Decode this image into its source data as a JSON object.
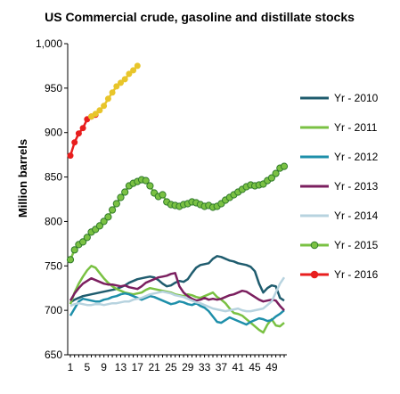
{
  "chart_data": {
    "type": "line",
    "title": "US Commercial crude, gasoline and distillate stocks",
    "ylabel": "Million barrels",
    "xlabel": "",
    "ylim": [
      650,
      1000
    ],
    "xlim": [
      1,
      52
    ],
    "yticks": [
      650,
      700,
      750,
      800,
      850,
      900,
      950,
      1000
    ],
    "ytick_labels": [
      "650",
      "700",
      "750",
      "800",
      "850",
      "900",
      "950",
      "1,000"
    ],
    "xticks": [
      1,
      5,
      9,
      13,
      17,
      21,
      25,
      29,
      33,
      37,
      41,
      45,
      49
    ],
    "grid": false,
    "legend_position": "right",
    "series": [
      {
        "name": "Yr - 2010",
        "color": "#1F5C6E",
        "marker": "none",
        "x": [
          1,
          2,
          3,
          4,
          5,
          6,
          7,
          8,
          9,
          10,
          11,
          12,
          13,
          14,
          15,
          16,
          17,
          18,
          19,
          20,
          21,
          22,
          23,
          24,
          25,
          26,
          27,
          28,
          29,
          30,
          31,
          32,
          33,
          34,
          35,
          36,
          37,
          38,
          39,
          40,
          41,
          42,
          43,
          44,
          45,
          46,
          47,
          48,
          49,
          50,
          51,
          52
        ],
        "values": [
          709,
          712,
          714,
          716,
          717,
          718,
          719,
          720,
          721,
          722,
          723,
          724,
          726,
          728,
          731,
          733,
          735,
          736,
          737,
          738,
          737,
          734,
          730,
          727,
          728,
          731,
          733,
          732,
          735,
          742,
          748,
          751,
          752,
          753,
          758,
          761,
          760,
          758,
          756,
          755,
          753,
          752,
          751,
          749,
          744,
          730,
          720,
          725,
          728,
          727,
          714,
          711
        ]
      },
      {
        "name": "Yr - 2011",
        "color": "#7AC143",
        "marker": "none",
        "x": [
          1,
          2,
          3,
          4,
          5,
          6,
          7,
          8,
          9,
          10,
          11,
          12,
          13,
          14,
          15,
          16,
          17,
          18,
          19,
          20,
          21,
          22,
          23,
          24,
          25,
          26,
          27,
          28,
          29,
          30,
          31,
          32,
          33,
          34,
          35,
          36,
          37,
          38,
          39,
          40,
          41,
          42,
          43,
          44,
          45,
          46,
          47,
          48,
          49,
          50,
          51,
          52
        ],
        "values": [
          707,
          720,
          730,
          738,
          745,
          750,
          748,
          742,
          736,
          731,
          727,
          724,
          722,
          720,
          719,
          718,
          719,
          720,
          723,
          725,
          724,
          723,
          722,
          721,
          720,
          718,
          717,
          716,
          718,
          717,
          715,
          714,
          716,
          718,
          720,
          715,
          712,
          708,
          702,
          697,
          696,
          694,
          690,
          686,
          682,
          678,
          675,
          684,
          690,
          683,
          682,
          686
        ]
      },
      {
        "name": "Yr - 2012",
        "color": "#1E8FAA",
        "marker": "none",
        "x": [
          1,
          2,
          3,
          4,
          5,
          6,
          7,
          8,
          9,
          10,
          11,
          12,
          13,
          14,
          15,
          16,
          17,
          18,
          19,
          20,
          21,
          22,
          23,
          24,
          25,
          26,
          27,
          28,
          29,
          30,
          31,
          32,
          33,
          34,
          35,
          36,
          37,
          38,
          39,
          40,
          41,
          42,
          43,
          44,
          45,
          46,
          47,
          48,
          49,
          50,
          51,
          52
        ],
        "values": [
          694,
          702,
          710,
          713,
          712,
          711,
          710,
          710,
          712,
          713,
          715,
          716,
          718,
          719,
          718,
          716,
          714,
          712,
          714,
          716,
          715,
          713,
          711,
          709,
          707,
          708,
          710,
          709,
          707,
          706,
          708,
          705,
          703,
          699,
          693,
          687,
          686,
          689,
          692,
          690,
          688,
          686,
          684,
          687,
          689,
          691,
          690,
          688,
          689,
          693,
          696,
          700
        ]
      },
      {
        "name": "Yr - 2013",
        "color": "#7B1F5F",
        "marker": "none",
        "x": [
          1,
          2,
          3,
          4,
          5,
          6,
          7,
          8,
          9,
          10,
          11,
          12,
          13,
          14,
          15,
          16,
          17,
          18,
          19,
          20,
          21,
          22,
          23,
          24,
          25,
          26,
          27,
          28,
          29,
          30,
          31,
          32,
          33,
          34,
          35,
          36,
          37,
          38,
          39,
          40,
          41,
          42,
          43,
          44,
          45,
          46,
          47,
          48,
          49,
          50,
          51,
          52
        ],
        "values": [
          711,
          719,
          725,
          730,
          733,
          736,
          734,
          732,
          730,
          729,
          729,
          728,
          727,
          728,
          726,
          725,
          724,
          727,
          731,
          733,
          735,
          737,
          738,
          739,
          741,
          742,
          727,
          720,
          716,
          713,
          711,
          712,
          714,
          712,
          713,
          712,
          713,
          715,
          717,
          718,
          720,
          722,
          721,
          718,
          715,
          712,
          710,
          711,
          712,
          711,
          705,
          700
        ]
      },
      {
        "name": "Yr - 2014",
        "color": "#B7D3DF",
        "marker": "none",
        "x": [
          1,
          2,
          3,
          4,
          5,
          6,
          7,
          8,
          9,
          10,
          11,
          12,
          13,
          14,
          15,
          16,
          17,
          18,
          19,
          20,
          21,
          22,
          23,
          24,
          25,
          26,
          27,
          28,
          29,
          30,
          31,
          32,
          33,
          34,
          35,
          36,
          37,
          38,
          39,
          40,
          41,
          42,
          43,
          44,
          45,
          46,
          47,
          48,
          49,
          50,
          51,
          52
        ],
        "values": [
          705,
          707,
          708,
          707,
          706,
          706,
          707,
          707,
          706,
          707,
          708,
          708,
          709,
          710,
          710,
          712,
          713,
          714,
          716,
          718,
          719,
          720,
          721,
          720,
          719,
          717,
          716,
          715,
          713,
          711,
          709,
          708,
          706,
          704,
          702,
          701,
          700,
          699,
          700,
          701,
          702,
          700,
          699,
          699,
          700,
          701,
          702,
          706,
          710,
          720,
          730,
          737
        ]
      },
      {
        "name": "Yr - 2015",
        "color": "#7AC143",
        "marker": "circle",
        "x": [
          1,
          2,
          3,
          4,
          5,
          6,
          7,
          8,
          9,
          10,
          11,
          12,
          13,
          14,
          15,
          16,
          17,
          18,
          19,
          20,
          21,
          22,
          23,
          24,
          25,
          26,
          27,
          28,
          29,
          30,
          31,
          32,
          33,
          34,
          35,
          36,
          37,
          38,
          39,
          40,
          41,
          42,
          43,
          44,
          45,
          46,
          47,
          48,
          49,
          50,
          51,
          52
        ],
        "values": [
          757,
          768,
          774,
          777,
          782,
          788,
          791,
          795,
          800,
          805,
          813,
          820,
          827,
          833,
          840,
          843,
          845,
          847,
          846,
          840,
          832,
          828,
          830,
          822,
          819,
          818,
          817,
          819,
          820,
          822,
          821,
          819,
          817,
          818,
          816,
          817,
          820,
          824,
          827,
          830,
          833,
          836,
          839,
          841,
          840,
          841,
          842,
          846,
          849,
          854,
          860,
          862
        ]
      },
      {
        "name": "Yr - 2016",
        "color": "#E81E1E",
        "marker": "circle",
        "x": [
          1,
          2,
          3,
          4,
          5,
          6,
          7
        ],
        "values": [
          874,
          889,
          899,
          905,
          915,
          918,
          920
        ]
      },
      {
        "name": "",
        "color": "#E8C52A",
        "marker": "circle",
        "x": [
          6,
          7,
          8,
          9,
          10,
          11,
          12,
          13,
          14,
          15,
          16,
          17
        ],
        "values": [
          918,
          921,
          925,
          930,
          938,
          945,
          952,
          956,
          960,
          966,
          970,
          975
        ]
      }
    ]
  }
}
